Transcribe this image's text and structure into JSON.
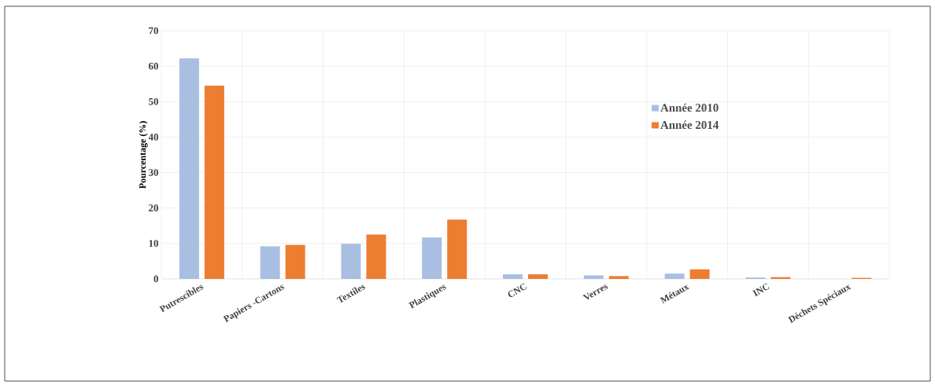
{
  "chart_data": {
    "type": "bar",
    "ylabel": "Pourcentage (%)",
    "categories": [
      "Putrescibles",
      "Papiers -Cartons",
      "Textiles",
      "Plastiques",
      "CNC",
      "Verres",
      "Métaux",
      "INC",
      "Déchets Spéciaux"
    ],
    "series": [
      {
        "name": "Année 2010",
        "color": "#a9bfe1",
        "values": [
          62.2,
          9.2,
          9.9,
          11.7,
          1.3,
          1.0,
          1.5,
          0.4,
          0
        ]
      },
      {
        "name": "Année 2014",
        "color": "#ed7d31",
        "values": [
          54.5,
          9.6,
          12.5,
          16.7,
          1.3,
          0.8,
          2.7,
          0.5,
          0.3
        ]
      }
    ],
    "ylim": [
      0,
      70
    ],
    "yticks": [
      0,
      10,
      20,
      30,
      40,
      50,
      60,
      70
    ],
    "grid": true,
    "legend": "right"
  }
}
